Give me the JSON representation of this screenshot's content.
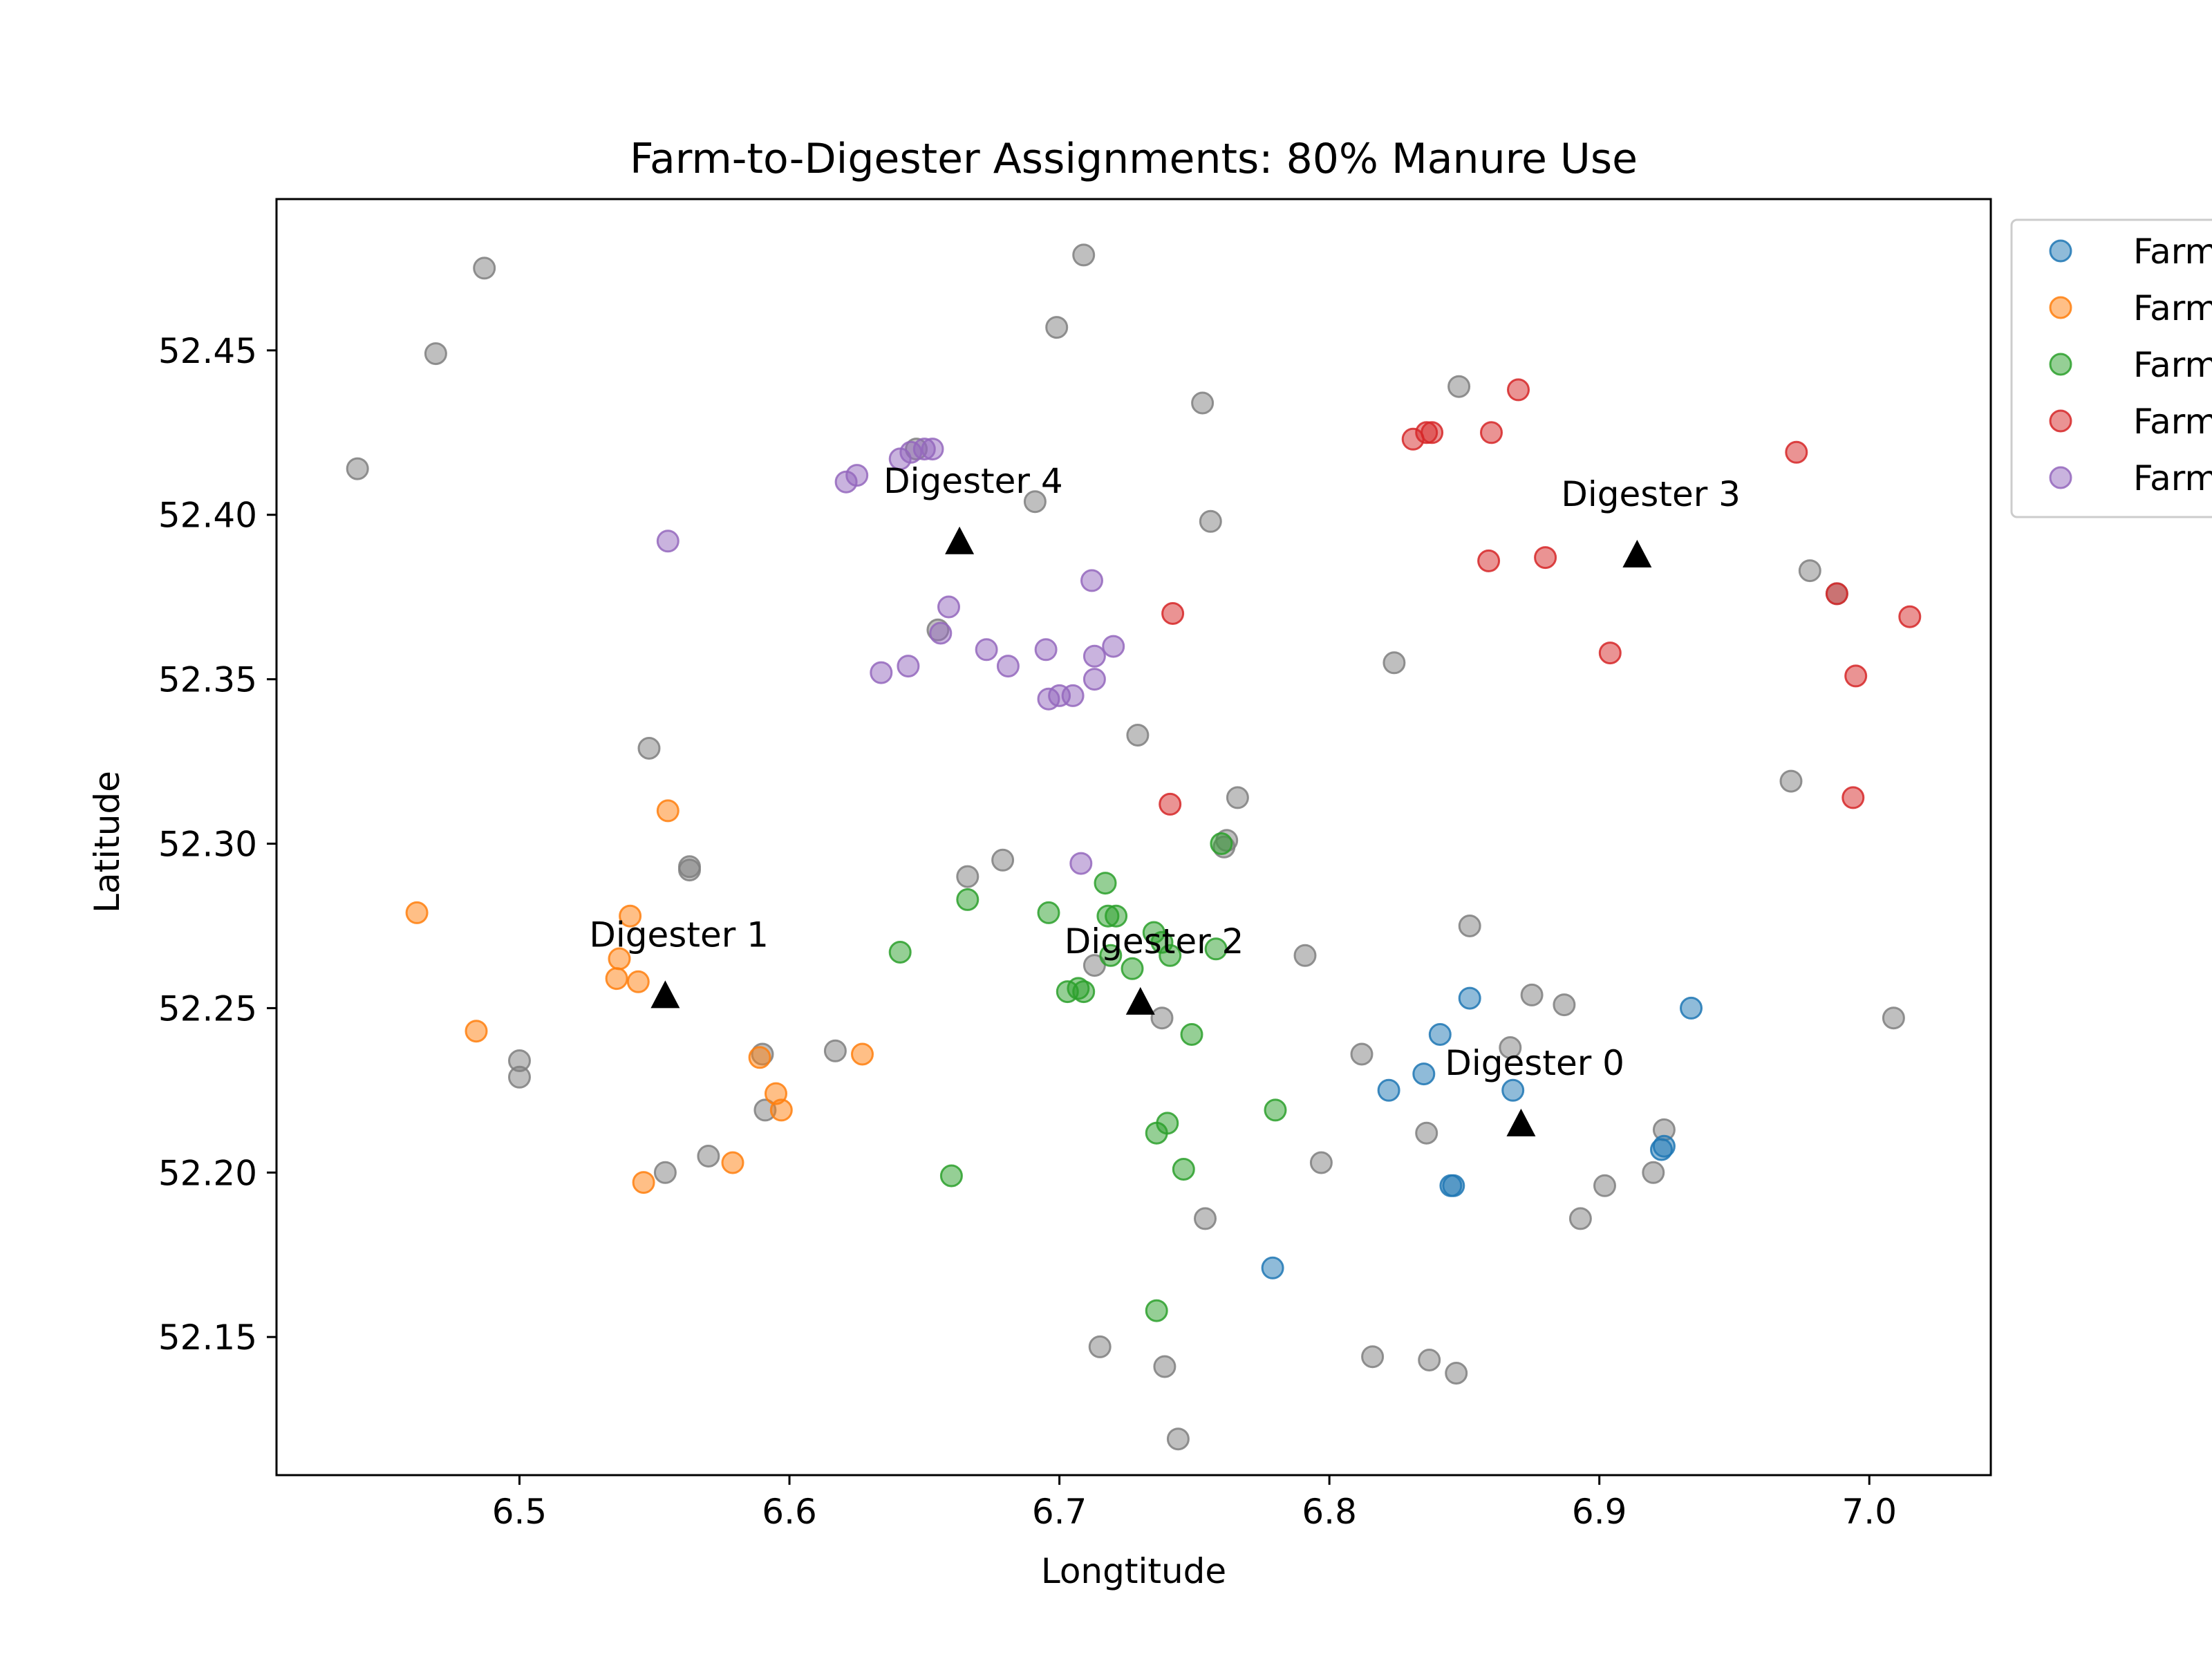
{
  "chart_data": {
    "type": "scatter",
    "title": "Farm-to-Digester Assignments: 80% Manure Use",
    "xlabel": "Longtitude",
    "ylabel": "Latitude",
    "xlim": [
      6.41,
      7.045
    ],
    "ylim": [
      52.108,
      52.496
    ],
    "xticks": [
      "6.5",
      "6.6",
      "6.7",
      "6.8",
      "6.9",
      "7.0"
    ],
    "yticks": [
      "52.15",
      "52.20",
      "52.25",
      "52.30",
      "52.35",
      "52.40",
      "52.45"
    ],
    "legend_position": "outside-right-top",
    "series": [
      {
        "name": "Farm",
        "color": "#1f77b4",
        "points": [
          [
            6.852,
            52.253
          ],
          [
            6.841,
            52.242
          ],
          [
            6.835,
            52.23
          ],
          [
            6.822,
            52.225
          ],
          [
            6.868,
            52.225
          ],
          [
            6.934,
            52.25
          ],
          [
            6.923,
            52.207
          ],
          [
            6.924,
            52.208
          ],
          [
            6.845,
            52.196
          ],
          [
            6.846,
            52.196
          ],
          [
            6.779,
            52.171
          ]
        ]
      },
      {
        "name": "Farm",
        "color": "#ff7f0e",
        "points": [
          [
            6.462,
            52.279
          ],
          [
            6.555,
            52.31
          ],
          [
            6.541,
            52.278
          ],
          [
            6.537,
            52.265
          ],
          [
            6.536,
            52.259
          ],
          [
            6.544,
            52.258
          ],
          [
            6.484,
            52.243
          ],
          [
            6.589,
            52.235
          ],
          [
            6.627,
            52.236
          ],
          [
            6.595,
            52.224
          ],
          [
            6.597,
            52.219
          ],
          [
            6.579,
            52.203
          ],
          [
            6.546,
            52.197
          ]
        ]
      },
      {
        "name": "Farm",
        "color": "#2ca02c",
        "points": [
          [
            6.76,
            52.3
          ],
          [
            6.717,
            52.288
          ],
          [
            6.666,
            52.283
          ],
          [
            6.696,
            52.279
          ],
          [
            6.718,
            52.278
          ],
          [
            6.721,
            52.278
          ],
          [
            6.735,
            52.273
          ],
          [
            6.738,
            52.27
          ],
          [
            6.758,
            52.268
          ],
          [
            6.641,
            52.267
          ],
          [
            6.741,
            52.266
          ],
          [
            6.719,
            52.266
          ],
          [
            6.727,
            52.262
          ],
          [
            6.703,
            52.255
          ],
          [
            6.707,
            52.256
          ],
          [
            6.709,
            52.255
          ],
          [
            6.749,
            52.242
          ],
          [
            6.78,
            52.219
          ],
          [
            6.74,
            52.215
          ],
          [
            6.736,
            52.212
          ],
          [
            6.746,
            52.201
          ],
          [
            6.66,
            52.199
          ],
          [
            6.736,
            52.158
          ]
        ]
      },
      {
        "name": "Farm",
        "color": "#d62728",
        "points": [
          [
            6.87,
            52.438
          ],
          [
            6.836,
            52.425
          ],
          [
            6.838,
            52.425
          ],
          [
            6.831,
            52.423
          ],
          [
            6.86,
            52.425
          ],
          [
            6.973,
            52.419
          ],
          [
            6.88,
            52.387
          ],
          [
            6.859,
            52.386
          ],
          [
            6.988,
            52.376
          ],
          [
            7.015,
            52.369
          ],
          [
            6.742,
            52.37
          ],
          [
            6.904,
            52.358
          ],
          [
            6.995,
            52.351
          ],
          [
            6.741,
            52.312
          ],
          [
            6.994,
            52.314
          ]
        ]
      },
      {
        "name": "Farm",
        "color": "#9467bd",
        "points": [
          [
            6.653,
            52.42
          ],
          [
            6.65,
            52.42
          ],
          [
            6.645,
            52.419
          ],
          [
            6.641,
            52.417
          ],
          [
            6.625,
            52.412
          ],
          [
            6.621,
            52.41
          ],
          [
            6.555,
            52.392
          ],
          [
            6.712,
            52.38
          ],
          [
            6.659,
            52.372
          ],
          [
            6.72,
            52.36
          ],
          [
            6.673,
            52.359
          ],
          [
            6.695,
            52.359
          ],
          [
            6.713,
            52.357
          ],
          [
            6.644,
            52.354
          ],
          [
            6.681,
            52.354
          ],
          [
            6.634,
            52.352
          ],
          [
            6.713,
            52.35
          ],
          [
            6.7,
            52.345
          ],
          [
            6.705,
            52.345
          ],
          [
            6.696,
            52.344
          ],
          [
            6.656,
            52.364
          ],
          [
            6.708,
            52.294
          ]
        ]
      },
      {
        "name": "",
        "color": "#7f7f7f",
        "points": [
          [
            6.487,
            52.475
          ],
          [
            6.469,
            52.449
          ],
          [
            6.44,
            52.414
          ],
          [
            6.709,
            52.479
          ],
          [
            6.699,
            52.457
          ],
          [
            6.753,
            52.434
          ],
          [
            6.848,
            52.439
          ],
          [
            6.691,
            52.404
          ],
          [
            6.756,
            52.398
          ],
          [
            6.978,
            52.383
          ],
          [
            6.988,
            52.376
          ],
          [
            6.655,
            52.365
          ],
          [
            6.824,
            52.355
          ],
          [
            6.729,
            52.333
          ],
          [
            6.548,
            52.329
          ],
          [
            6.766,
            52.314
          ],
          [
            6.971,
            52.319
          ],
          [
            6.762,
            52.301
          ],
          [
            6.761,
            52.299
          ],
          [
            6.563,
            52.293
          ],
          [
            6.563,
            52.292
          ],
          [
            6.679,
            52.295
          ],
          [
            6.666,
            52.29
          ],
          [
            6.852,
            52.275
          ],
          [
            6.791,
            52.266
          ],
          [
            6.713,
            52.263
          ],
          [
            6.875,
            52.254
          ],
          [
            6.887,
            52.251
          ],
          [
            6.738,
            52.247
          ],
          [
            7.009,
            52.247
          ],
          [
            6.5,
            52.234
          ],
          [
            6.5,
            52.229
          ],
          [
            6.59,
            52.236
          ],
          [
            6.617,
            52.237
          ],
          [
            6.812,
            52.236
          ],
          [
            6.867,
            52.238
          ],
          [
            6.924,
            52.213
          ],
          [
            6.836,
            52.212
          ],
          [
            6.591,
            52.219
          ],
          [
            6.57,
            52.205
          ],
          [
            6.554,
            52.2
          ],
          [
            6.797,
            52.203
          ],
          [
            6.92,
            52.2
          ],
          [
            6.902,
            52.196
          ],
          [
            6.893,
            52.186
          ],
          [
            6.754,
            52.186
          ],
          [
            6.715,
            52.147
          ],
          [
            6.816,
            52.144
          ],
          [
            6.837,
            52.143
          ],
          [
            6.739,
            52.141
          ],
          [
            6.847,
            52.139
          ],
          [
            6.744,
            52.119
          ],
          [
            6.647,
            52.42
          ]
        ]
      }
    ],
    "digesters": [
      {
        "label": "Digester 0",
        "x": 6.871,
        "y": 52.215
      },
      {
        "label": "Digester 1",
        "x": 6.554,
        "y": 52.254
      },
      {
        "label": "Digester 2",
        "x": 6.73,
        "y": 52.252
      },
      {
        "label": "Digester 3",
        "x": 6.914,
        "y": 52.388
      },
      {
        "label": "Digester 4",
        "x": 6.663,
        "y": 52.392
      }
    ],
    "legend": [
      "Farm",
      "Farm",
      "Farm",
      "Farm",
      "Farm"
    ]
  }
}
